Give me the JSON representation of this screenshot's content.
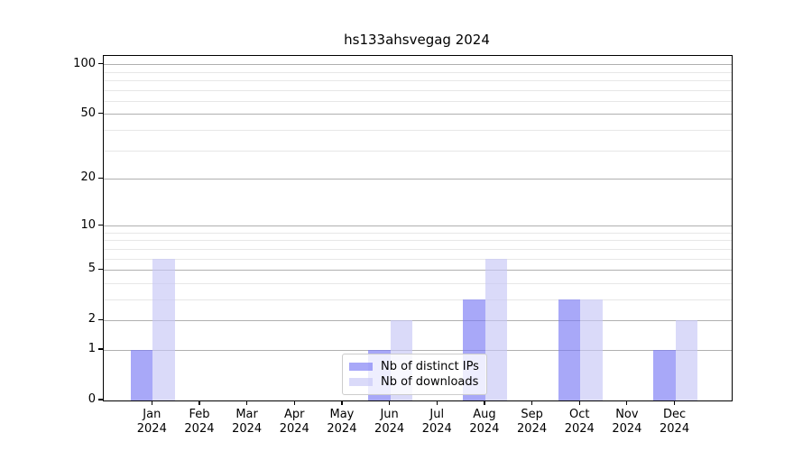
{
  "chart_data": {
    "type": "bar",
    "title": "hs133ahsvegag 2024",
    "categories": [
      {
        "month": "Jan",
        "year": "2024"
      },
      {
        "month": "Feb",
        "year": "2024"
      },
      {
        "month": "Mar",
        "year": "2024"
      },
      {
        "month": "Apr",
        "year": "2024"
      },
      {
        "month": "May",
        "year": "2024"
      },
      {
        "month": "Jun",
        "year": "2024"
      },
      {
        "month": "Jul",
        "year": "2024"
      },
      {
        "month": "Aug",
        "year": "2024"
      },
      {
        "month": "Sep",
        "year": "2024"
      },
      {
        "month": "Oct",
        "year": "2024"
      },
      {
        "month": "Nov",
        "year": "2024"
      },
      {
        "month": "Dec",
        "year": "2024"
      }
    ],
    "series": [
      {
        "name": "Nb of distinct IPs",
        "color": "rgba(121,121,244,0.65)",
        "values": [
          1,
          0,
          0,
          0,
          0,
          1,
          0,
          3,
          0,
          3,
          0,
          1
        ]
      },
      {
        "name": "Nb of downloads",
        "color": "rgba(198,198,246,0.65)",
        "values": [
          6,
          0,
          0,
          0,
          0,
          2,
          0,
          6,
          0,
          3,
          0,
          2
        ]
      }
    ],
    "y_axis": {
      "scale": "log1p",
      "ticks": [
        0,
        1,
        2,
        5,
        10,
        20,
        50,
        100
      ],
      "minor_ticks": [
        3,
        4,
        6,
        7,
        8,
        9,
        30,
        40,
        60,
        70,
        80,
        90
      ],
      "max": 113
    },
    "grid": {
      "major_color": "#b0b0b0",
      "minor_color": "#e7e7e7"
    },
    "legend_position": "lower center"
  }
}
